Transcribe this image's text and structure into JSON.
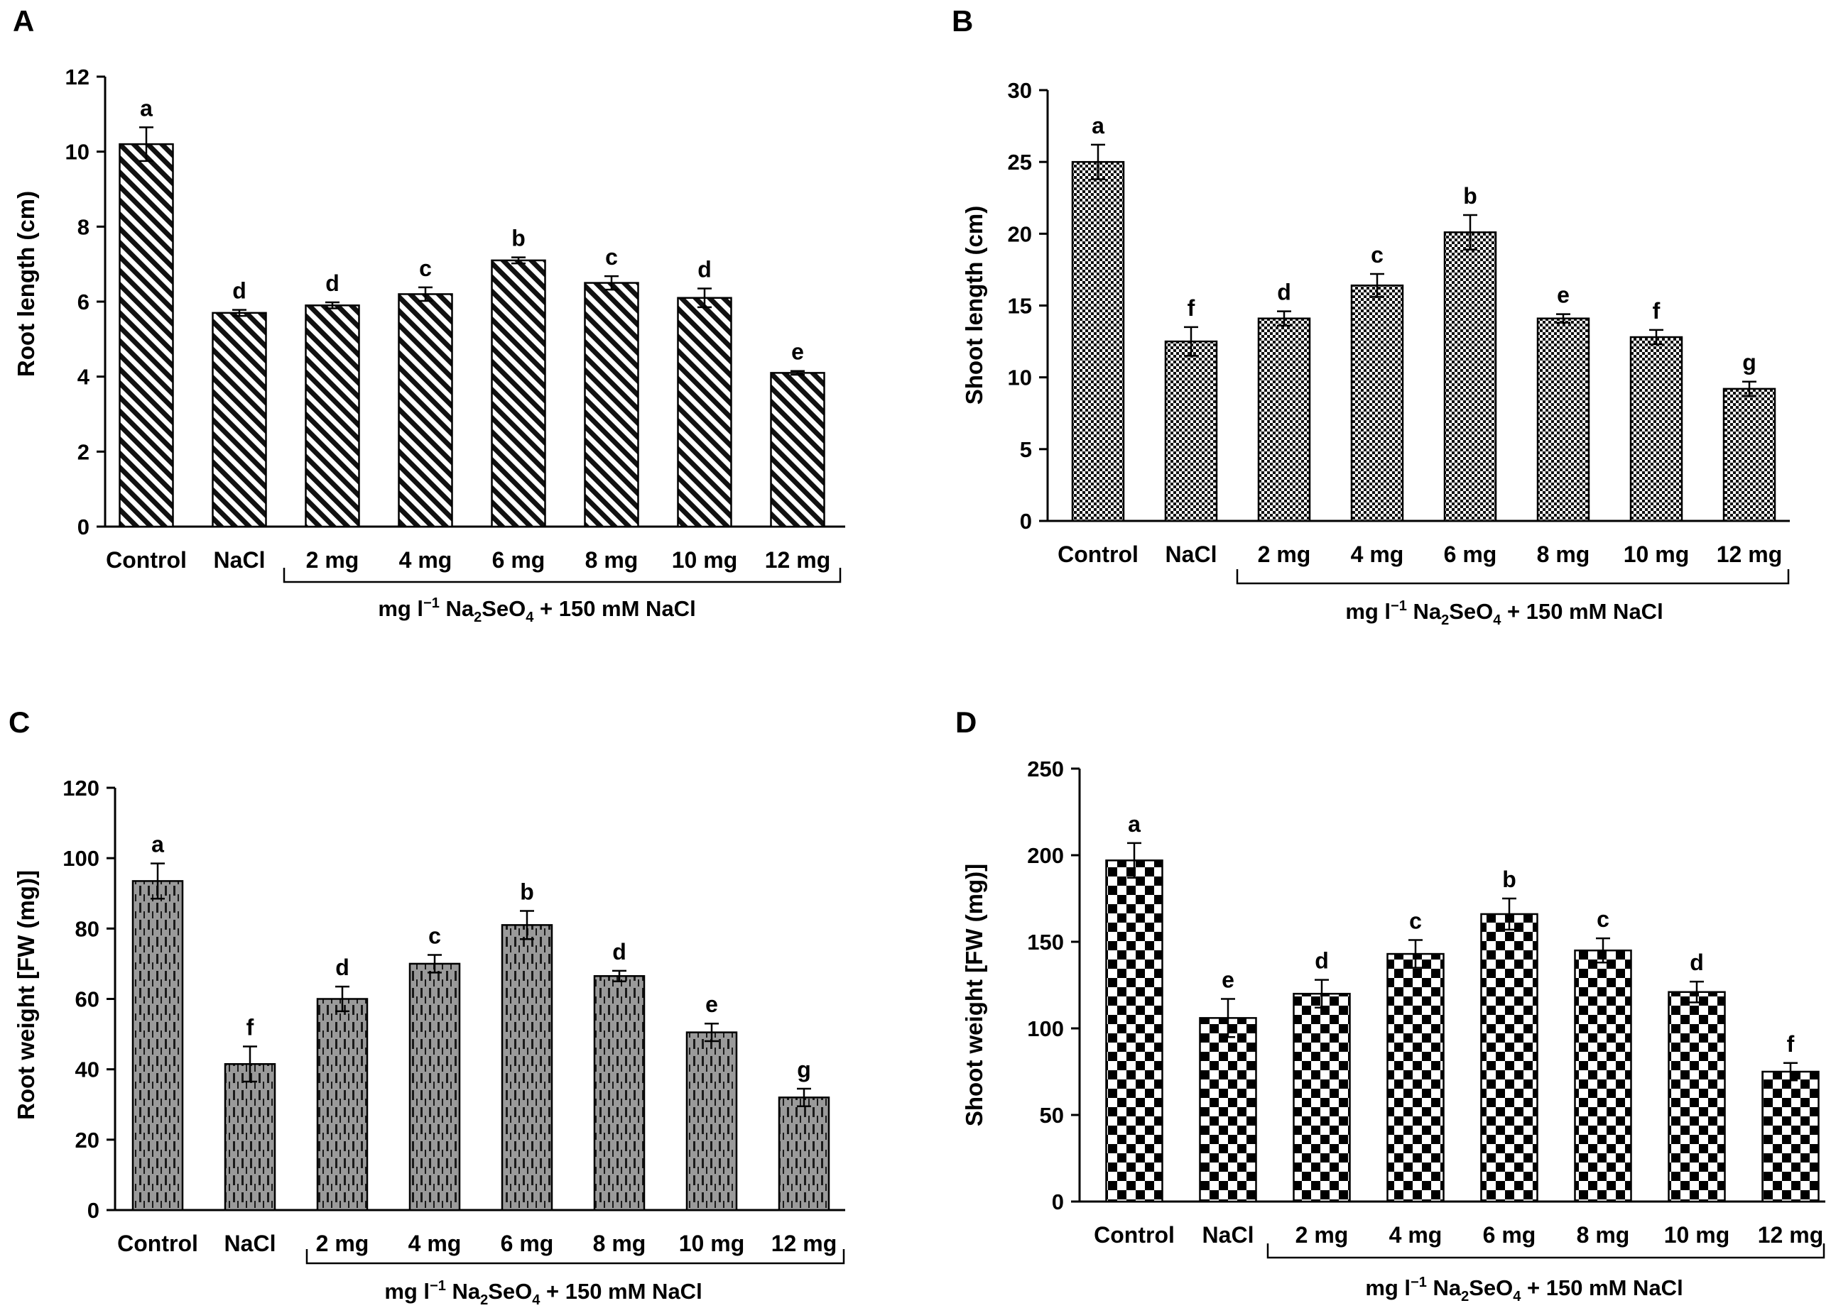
{
  "chart_data": [
    {
      "type": "bar",
      "panel_label": "A",
      "pattern": "diagonal",
      "ylabel": "Root length (cm)",
      "categories": [
        "Control",
        "NaCl",
        "2 mg",
        "4 mg",
        "6 mg",
        "8 mg",
        "10 mg",
        "12 mg"
      ],
      "values": [
        10.2,
        5.7,
        5.9,
        6.2,
        7.1,
        6.5,
        6.1,
        4.1
      ],
      "errors": [
        0.45,
        0.08,
        0.08,
        0.18,
        0.08,
        0.18,
        0.25,
        0.05
      ],
      "letters": [
        "a",
        "d",
        "d",
        "c",
        "b",
        "c",
        "d",
        "e"
      ],
      "ylim": [
        0,
        12
      ],
      "yticks": [
        0,
        2,
        4,
        6,
        8,
        10,
        12
      ],
      "group_label": {
        "pre": "mg l",
        "sup": "−1",
        "na": " Na",
        "sub1": "2",
        "se": "SeO",
        "sub2": "4",
        "post": " + 150 mM NaCl"
      }
    },
    {
      "type": "bar",
      "panel_label": "B",
      "pattern": "crosshatch",
      "ylabel": "Shoot length (cm)",
      "categories": [
        "Control",
        "NaCl",
        "2 mg",
        "4 mg",
        "6 mg",
        "8 mg",
        "10 mg",
        "12 mg"
      ],
      "values": [
        25.0,
        12.5,
        14.1,
        16.4,
        20.1,
        14.1,
        12.8,
        9.2
      ],
      "errors": [
        1.2,
        1.0,
        0.5,
        0.8,
        1.2,
        0.3,
        0.5,
        0.5
      ],
      "letters": [
        "a",
        "f",
        "d",
        "c",
        "b",
        "e",
        "f",
        "g"
      ],
      "ylim": [
        0,
        30
      ],
      "yticks": [
        0,
        5,
        10,
        15,
        20,
        25,
        30
      ],
      "group_label": {
        "pre": "mg l",
        "sup": "−1",
        "na": " Na",
        "sub1": "2",
        "se": "SeO",
        "sub2": "4",
        "post": " + 150 mM NaCl"
      }
    },
    {
      "type": "bar",
      "panel_label": "C",
      "pattern": "dashed-vertical",
      "ylabel": "Root weight [FW (mg)]",
      "categories": [
        "Control",
        "NaCl",
        "2 mg",
        "4 mg",
        "6 mg",
        "8 mg",
        "10 mg",
        "12 mg"
      ],
      "values": [
        93.5,
        41.5,
        60.0,
        70.0,
        81.0,
        66.5,
        50.5,
        32.0
      ],
      "errors": [
        5.0,
        5.0,
        3.5,
        2.5,
        4.0,
        1.5,
        2.5,
        2.5
      ],
      "letters": [
        "a",
        "f",
        "d",
        "c",
        "b",
        "d",
        "e",
        "g"
      ],
      "ylim": [
        0,
        120
      ],
      "yticks": [
        0,
        20,
        40,
        60,
        80,
        100,
        120
      ],
      "group_label": {
        "pre": "mg l",
        "sup": "−1",
        "na": " Na",
        "sub1": "2",
        "se": "SeO",
        "sub2": "4",
        "post": " + 150 mM NaCl"
      }
    },
    {
      "type": "bar",
      "panel_label": "D",
      "pattern": "checker",
      "ylabel": "Shoot weight [FW (mg)]",
      "categories": [
        "Control",
        "NaCl",
        "2 mg",
        "4 mg",
        "6 mg",
        "8 mg",
        "10 mg",
        "12 mg"
      ],
      "values": [
        197,
        106,
        120,
        143,
        166,
        145,
        121,
        75
      ],
      "errors": [
        10,
        11,
        8,
        8,
        9,
        7,
        6,
        5
      ],
      "letters": [
        "a",
        "e",
        "d",
        "c",
        "b",
        "c",
        "d",
        "f"
      ],
      "ylim": [
        0,
        250
      ],
      "yticks": [
        0,
        50,
        100,
        150,
        200,
        250
      ],
      "group_label": {
        "pre": "mg l",
        "sup": "−1",
        "na": " Na",
        "sub1": "2",
        "se": "SeO",
        "sub2": "4",
        "post": " + 150 mM NaCl"
      }
    }
  ]
}
